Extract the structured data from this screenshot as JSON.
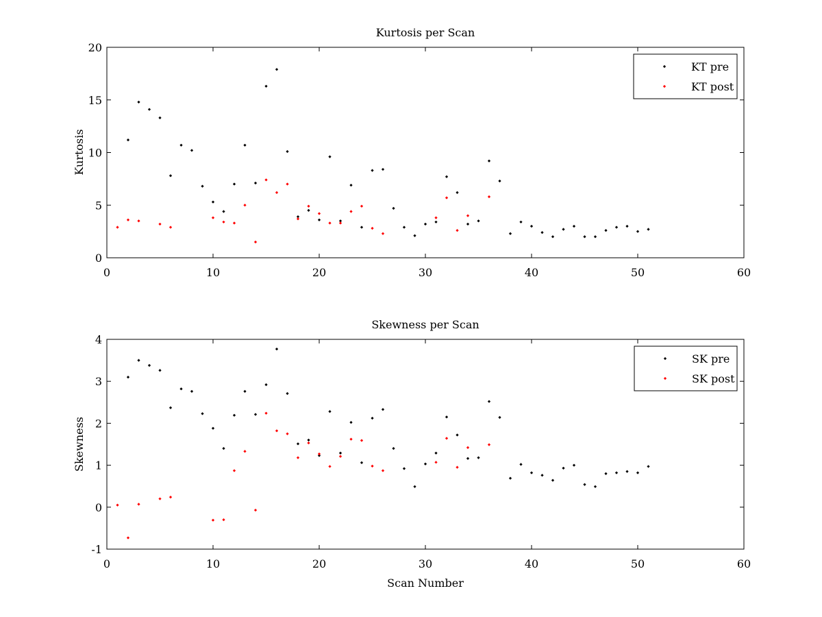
{
  "chart_data": [
    {
      "type": "scatter",
      "title": "Kurtosis per Scan",
      "xlabel": "",
      "ylabel": "Kurtosis",
      "xlim": [
        0,
        60
      ],
      "ylim": [
        0,
        20
      ],
      "xticks": [
        0,
        10,
        20,
        30,
        40,
        50,
        60
      ],
      "yticks": [
        0,
        5,
        10,
        15,
        20
      ],
      "grid": false,
      "legend_position": "top-right",
      "series": [
        {
          "name": "KT pre",
          "color": "#000000",
          "x": [
            2,
            3,
            4,
            5,
            6,
            7,
            8,
            9,
            10,
            11,
            12,
            13,
            14,
            15,
            16,
            17,
            18,
            19,
            20,
            21,
            22,
            23,
            24,
            25,
            26,
            27,
            28,
            29,
            30,
            31,
            32,
            33,
            34,
            35,
            36,
            37,
            38,
            39,
            40,
            41,
            42,
            43,
            44,
            45,
            46,
            47,
            48,
            49,
            50,
            51
          ],
          "y": [
            11.2,
            14.8,
            14.1,
            13.3,
            7.8,
            10.7,
            10.2,
            6.8,
            5.3,
            4.4,
            7.0,
            10.7,
            7.1,
            16.3,
            17.9,
            10.1,
            3.9,
            4.5,
            3.6,
            9.6,
            3.5,
            6.9,
            2.9,
            8.3,
            8.4,
            4.7,
            2.9,
            2.1,
            3.2,
            3.4,
            7.7,
            6.2,
            3.2,
            3.5,
            9.2,
            7.3,
            2.3,
            3.4,
            3.0,
            2.4,
            2.0,
            2.7,
            3.0,
            2.0,
            2.0,
            2.6,
            2.9,
            3.0,
            2.5,
            2.7
          ]
        },
        {
          "name": "KT post",
          "color": "#ff0000",
          "x": [
            1,
            2,
            3,
            5,
            6,
            10,
            11,
            12,
            13,
            14,
            15,
            16,
            17,
            18,
            19,
            20,
            21,
            22,
            23,
            24,
            25,
            26,
            31,
            32,
            33,
            34,
            36
          ],
          "y": [
            2.9,
            3.6,
            3.5,
            3.2,
            2.9,
            3.8,
            3.4,
            3.3,
            5.0,
            1.5,
            7.4,
            6.2,
            7.0,
            3.7,
            4.9,
            4.2,
            3.3,
            3.3,
            4.4,
            4.9,
            2.8,
            2.3,
            3.8,
            5.7,
            2.6,
            4.0,
            5.8
          ]
        }
      ]
    },
    {
      "type": "scatter",
      "title": "Skewness per Scan",
      "xlabel": "Scan Number",
      "ylabel": "Skewness",
      "xlim": [
        0,
        60
      ],
      "ylim": [
        -1,
        4
      ],
      "xticks": [
        0,
        10,
        20,
        30,
        40,
        50,
        60
      ],
      "yticks": [
        -1,
        0,
        1,
        2,
        3,
        4
      ],
      "grid": false,
      "legend_position": "top-right",
      "series": [
        {
          "name": "SK pre",
          "color": "#000000",
          "x": [
            2,
            3,
            4,
            5,
            6,
            7,
            8,
            9,
            10,
            11,
            12,
            13,
            14,
            15,
            16,
            17,
            18,
            19,
            20,
            21,
            22,
            23,
            24,
            25,
            26,
            27,
            28,
            29,
            30,
            31,
            32,
            33,
            34,
            35,
            36,
            37,
            38,
            39,
            40,
            41,
            42,
            43,
            44,
            45,
            46,
            47,
            48,
            49,
            50,
            51
          ],
          "y": [
            3.1,
            3.5,
            3.38,
            3.26,
            2.37,
            2.82,
            2.76,
            2.23,
            1.88,
            1.4,
            2.19,
            2.76,
            2.21,
            2.92,
            3.77,
            2.71,
            1.51,
            1.6,
            1.23,
            2.28,
            1.29,
            2.02,
            1.06,
            2.12,
            2.33,
            1.4,
            0.92,
            0.49,
            1.03,
            1.29,
            2.15,
            1.72,
            1.16,
            1.18,
            2.52,
            2.14,
            0.69,
            1.02,
            0.82,
            0.76,
            0.64,
            0.93,
            1.0,
            0.54,
            0.49,
            0.8,
            0.82,
            0.85,
            0.82,
            0.97
          ]
        },
        {
          "name": "SK post",
          "color": "#ff0000",
          "x": [
            1,
            2,
            3,
            5,
            6,
            10,
            11,
            12,
            13,
            14,
            15,
            16,
            17,
            18,
            19,
            20,
            21,
            22,
            23,
            24,
            25,
            26,
            31,
            32,
            33,
            34,
            36
          ],
          "y": [
            0.05,
            -0.73,
            0.07,
            0.2,
            0.24,
            -0.31,
            -0.3,
            0.87,
            1.33,
            -0.07,
            2.24,
            1.82,
            1.75,
            1.18,
            1.53,
            1.27,
            0.97,
            1.21,
            1.62,
            1.59,
            0.98,
            0.87,
            1.07,
            1.64,
            0.95,
            1.42,
            1.49
          ]
        }
      ]
    }
  ]
}
